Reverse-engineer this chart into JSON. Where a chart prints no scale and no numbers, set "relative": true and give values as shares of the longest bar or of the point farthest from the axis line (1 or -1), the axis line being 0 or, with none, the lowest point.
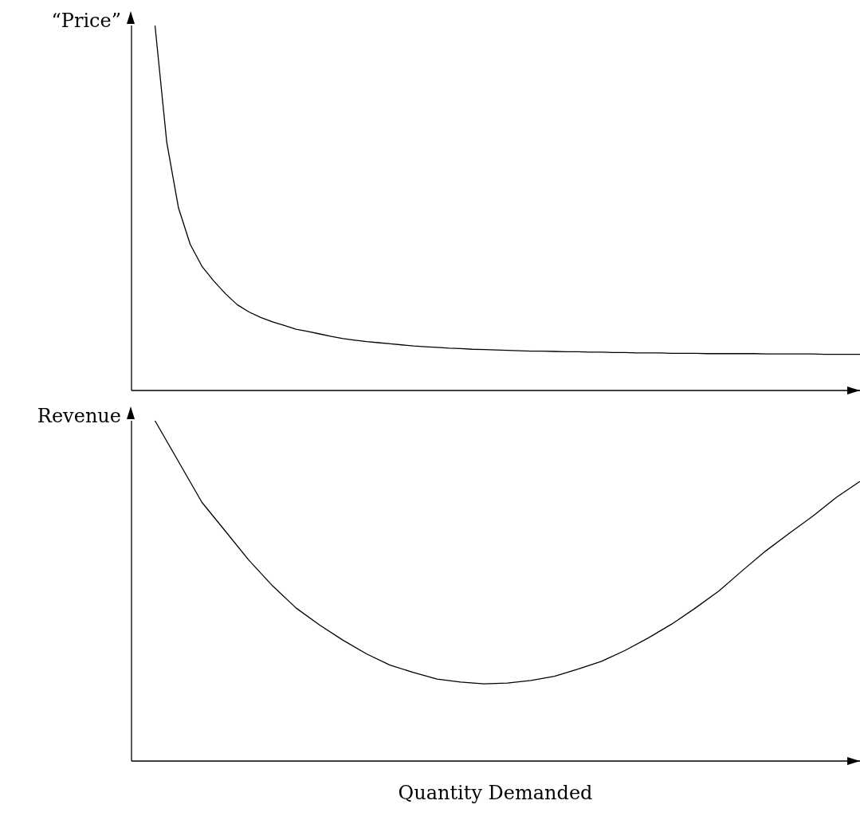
{
  "chart_data": [
    {
      "type": "line",
      "ylabel": "“Price”",
      "relative": true,
      "tick_labels": false,
      "color": "#000000",
      "categories": [
        null,
        null,
        null,
        null,
        null,
        null,
        null,
        null,
        null,
        null,
        null,
        null,
        null,
        null,
        null,
        null,
        null,
        null,
        null,
        null,
        null,
        null,
        null,
        null,
        null,
        null,
        null,
        null,
        null,
        null,
        null,
        null,
        null,
        null,
        null,
        null,
        null,
        null,
        null,
        null,
        null,
        null,
        null,
        null,
        null,
        null,
        null,
        null,
        null,
        null,
        null,
        null,
        null,
        null,
        null,
        null,
        null,
        null,
        null,
        null,
        null,
        null,
        null
      ],
      "values": [
        null,
        null,
        1,
        0.68,
        0.5,
        0.4,
        0.34,
        0.3,
        0.265,
        0.235,
        0.215,
        0.2,
        0.188,
        0.178,
        0.168,
        0.162,
        0.155,
        0.148,
        0.142,
        0.138,
        0.134,
        0.131,
        0.128,
        0.125,
        0.122,
        0.12,
        0.118,
        0.116,
        0.115,
        0.113,
        0.112,
        0.111,
        0.11,
        0.109,
        0.108,
        0.108,
        0.107,
        0.106,
        0.106,
        0.105,
        0.105,
        0.104,
        0.104,
        0.103,
        0.103,
        0.103,
        0.102,
        0.102,
        0.102,
        0.101,
        0.101,
        0.101,
        0.101,
        0.101,
        0.1,
        0.1,
        0.1,
        0.1,
        0.1,
        0.099,
        0.099,
        0.099,
        0.099
      ]
    },
    {
      "type": "line",
      "ylabel": "Revenue",
      "xlabel": "Quantity Demanded",
      "relative": true,
      "tick_labels": false,
      "color": "#000000",
      "categories": [
        null,
        null,
        null,
        null,
        null,
        null,
        null,
        null,
        null,
        null,
        null,
        null,
        null,
        null,
        null,
        null,
        null,
        null,
        null,
        null,
        null,
        null,
        null,
        null,
        null,
        null,
        null,
        null,
        null,
        null,
        null,
        null
      ],
      "values": [
        null,
        1,
        0.88,
        0.76,
        0.675,
        0.59,
        0.515,
        0.45,
        0.4,
        0.355,
        0.315,
        0.282,
        0.26,
        0.241,
        0.232,
        0.227,
        0.229,
        0.237,
        0.249,
        0.27,
        0.293,
        0.325,
        0.362,
        0.403,
        0.45,
        0.5,
        0.56,
        0.618,
        0.67,
        0.72,
        0.775,
        0.822
      ]
    }
  ]
}
